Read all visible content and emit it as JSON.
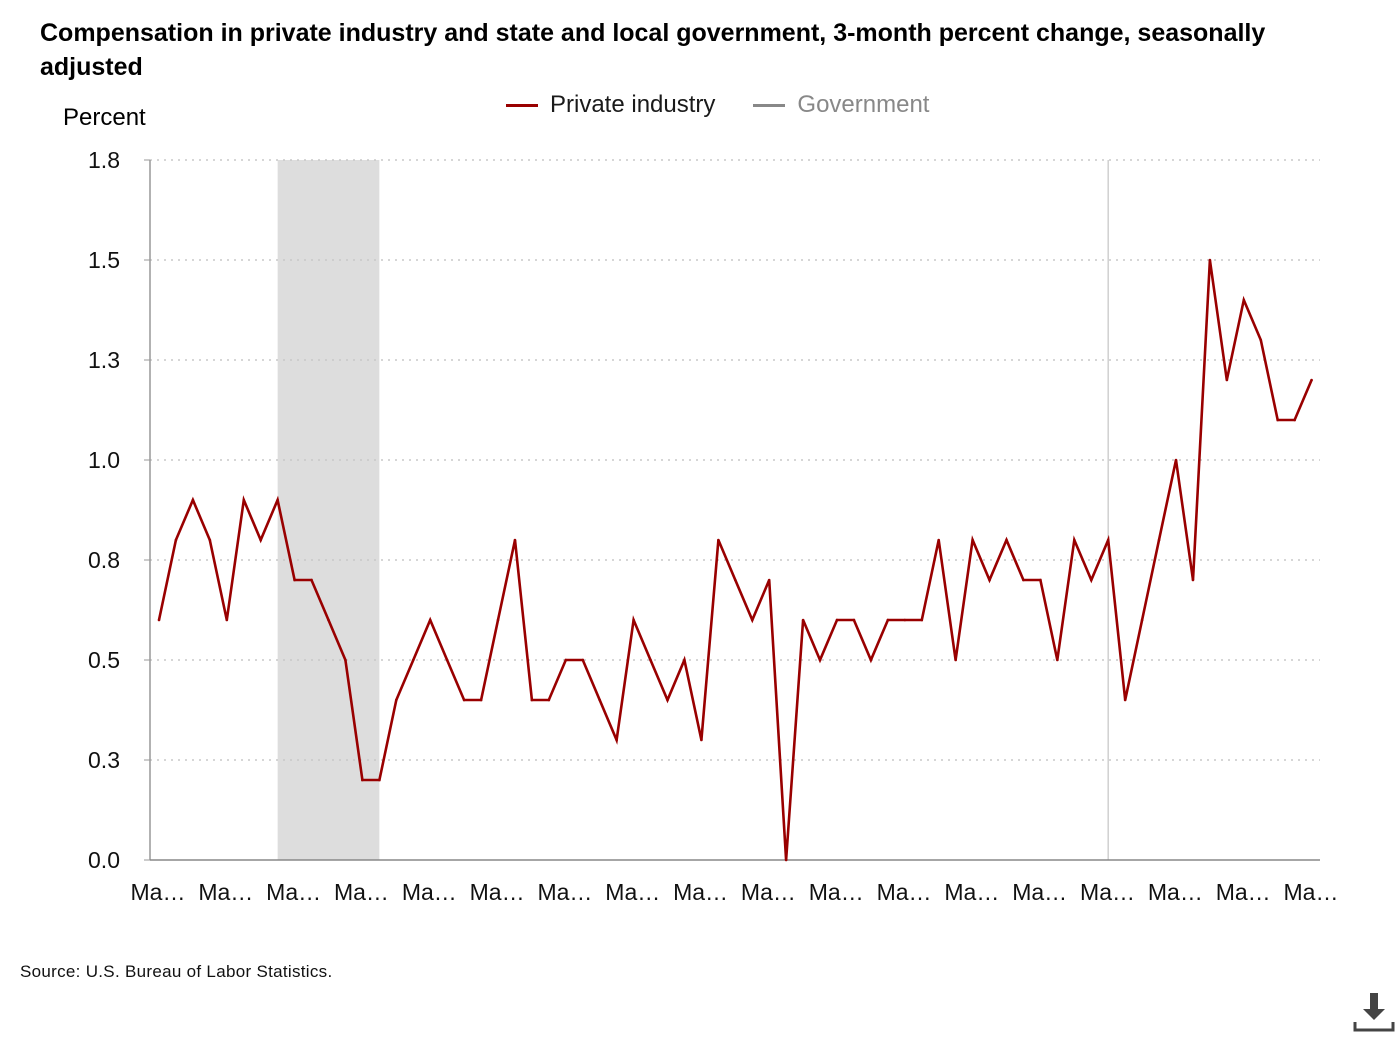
{
  "chart_data": {
    "type": "line",
    "title": "Compensation in private industry and state and local government, 3-month percent change, seasonally adjusted",
    "ylabel": "Percent",
    "xlabel": "",
    "ylim": [
      0,
      1.75
    ],
    "yticks": [
      {
        "value": 0.0,
        "label": "0.0"
      },
      {
        "value": 0.25,
        "label": "0.3"
      },
      {
        "value": 0.5,
        "label": "0.5"
      },
      {
        "value": 0.75,
        "label": "0.8"
      },
      {
        "value": 1.0,
        "label": "1.0"
      },
      {
        "value": 1.25,
        "label": "1.3"
      },
      {
        "value": 1.5,
        "label": "1.5"
      },
      {
        "value": 1.75,
        "label": "1.8"
      }
    ],
    "x_tick_labels": [
      "Ma…",
      "Ma…",
      "Ma…",
      "Ma…",
      "Ma…",
      "Ma…",
      "Ma…",
      "Ma…",
      "Ma…",
      "Ma…",
      "Ma…",
      "Ma…",
      "Ma…",
      "Ma…",
      "Ma…",
      "Ma…",
      "Ma…",
      "Ma…"
    ],
    "grid": true,
    "legend_position": "top",
    "recession_shading": {
      "start_index": 7,
      "end_index": 13,
      "color": "#dddddd"
    },
    "reference_line_index": 56,
    "series": [
      {
        "name": "Private industry",
        "color": "#990000",
        "values": [
          0.6,
          0.8,
          0.9,
          0.8,
          0.6,
          0.9,
          0.8,
          0.9,
          0.7,
          0.7,
          0.6,
          0.5,
          0.2,
          0.2,
          0.4,
          0.5,
          0.6,
          0.5,
          0.4,
          0.4,
          0.6,
          0.8,
          0.4,
          0.4,
          0.5,
          0.5,
          0.4,
          0.3,
          0.6,
          0.5,
          0.4,
          0.5,
          0.3,
          0.8,
          0.7,
          0.6,
          0.7,
          0.0,
          0.6,
          0.5,
          0.6,
          0.6,
          0.5,
          0.6,
          0.6,
          0.6,
          0.8,
          0.5,
          0.8,
          0.7,
          0.8,
          0.7,
          0.7,
          0.5,
          0.8,
          0.7,
          0.8,
          0.4,
          0.6,
          0.8,
          1.0,
          0.7,
          1.5,
          1.2,
          1.4,
          1.3,
          1.1,
          1.1,
          1.2
        ]
      },
      {
        "name": "Government",
        "color": "#888888",
        "values": []
      }
    ]
  },
  "source": "Source: U.S. Bureau of Labor Statistics.",
  "download_icon": "download-icon"
}
